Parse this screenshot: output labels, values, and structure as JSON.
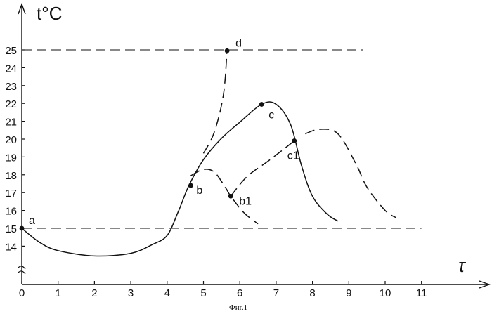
{
  "chart_data": {
    "type": "line",
    "title": "",
    "xlabel": "τ",
    "ylabel": "t°C",
    "caption": "Фиг.1",
    "xlim": [
      0,
      11
    ],
    "ylim": [
      13,
      25
    ],
    "x_ticks": [
      "0",
      "1",
      "2",
      "3",
      "4",
      "5",
      "6",
      "7",
      "8",
      "9",
      "10",
      "11"
    ],
    "y_ticks": [
      "14",
      "15",
      "16",
      "17",
      "18",
      "19",
      "20",
      "21",
      "22",
      "23",
      "24",
      "25"
    ],
    "y_axis_break": true,
    "grid": false,
    "reference_lines": [
      {
        "y": 25,
        "x_from": 0,
        "x_to": 9.4,
        "style": "dashed"
      },
      {
        "y": 15,
        "x_from": 0,
        "x_to": 11,
        "style": "dashed"
      }
    ],
    "series": [
      {
        "style": "solid",
        "points": [
          [
            0,
            15
          ],
          [
            0.5,
            14.2
          ],
          [
            1,
            13.75
          ],
          [
            2,
            13.45
          ],
          [
            3,
            13.6
          ],
          [
            3.6,
            14.1
          ],
          [
            4,
            14.6
          ],
          [
            4.3,
            15.9
          ],
          [
            4.6,
            17.4
          ],
          [
            5,
            18.85
          ],
          [
            5.5,
            20.05
          ],
          [
            6,
            20.95
          ],
          [
            6.6,
            21.95
          ],
          [
            7,
            21.95
          ],
          [
            7.4,
            20.8
          ],
          [
            7.7,
            18.5
          ],
          [
            8,
            16.8
          ],
          [
            8.4,
            15.8
          ],
          [
            8.7,
            15.4
          ]
        ]
      },
      {
        "style": "dashed",
        "points": [
          [
            5,
            19.2
          ],
          [
            5.3,
            20.4
          ],
          [
            5.55,
            22.5
          ],
          [
            5.65,
            25
          ]
        ]
      },
      {
        "style": "dashed",
        "points": [
          [
            4.65,
            17.95
          ],
          [
            5,
            18.3
          ],
          [
            5.3,
            18.15
          ],
          [
            5.6,
            17.3
          ],
          [
            5.75,
            16.8
          ],
          [
            6.1,
            15.9
          ],
          [
            6.4,
            15.4
          ],
          [
            6.5,
            15.25
          ]
        ]
      },
      {
        "style": "dashed",
        "points": [
          [
            5.75,
            16.8
          ],
          [
            6.2,
            17.9
          ],
          [
            6.8,
            18.8
          ],
          [
            7.5,
            19.9
          ]
        ]
      },
      {
        "style": "dashed",
        "points": [
          [
            7.8,
            20.3
          ],
          [
            8.2,
            20.55
          ],
          [
            8.7,
            20.3
          ],
          [
            9.2,
            18.6
          ],
          [
            9.5,
            17.3
          ],
          [
            10,
            16
          ],
          [
            10.3,
            15.6
          ]
        ]
      }
    ],
    "points": [
      {
        "label": "a",
        "x": 0,
        "y": 15
      },
      {
        "label": "b",
        "x": 4.65,
        "y": 17.4
      },
      {
        "label": "b1",
        "x": 5.75,
        "y": 16.8
      },
      {
        "label": "c",
        "x": 6.6,
        "y": 21.95
      },
      {
        "label": "c1",
        "x": 7.5,
        "y": 19.9
      },
      {
        "label": "d",
        "x": 5.65,
        "y": 24.95
      }
    ]
  }
}
